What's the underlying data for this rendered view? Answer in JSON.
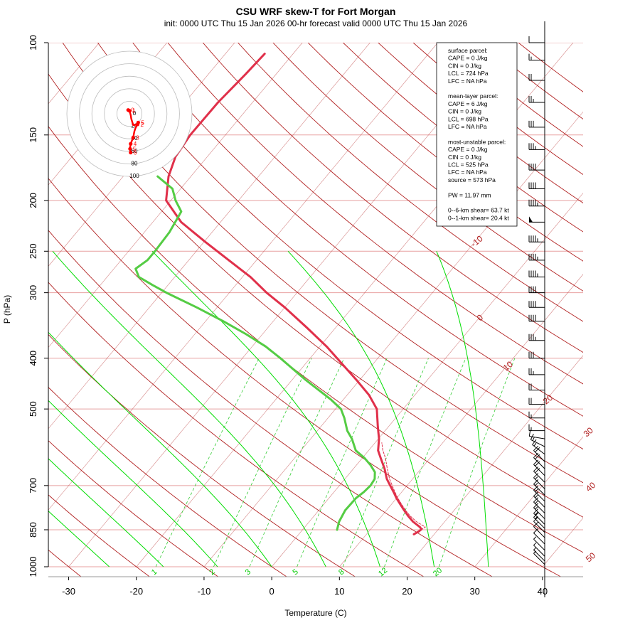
{
  "header": {
    "title": "CSU WRF skew-T for Fort Morgan",
    "subtitle": "init: 0000 UTC Thu 15 Jan 2026     00-hr forecast valid 0000 UTC Thu 15 Jan 2026"
  },
  "info_box": {
    "lines": [
      "surface parcel:",
      "CAPE = 0 J/kg",
      "CIN = 0 J/kg",
      "LCL = 724 hPa",
      "LFC = NA hPa",
      "",
      "mean-layer parcel:",
      "CAPE = 6 J/kg",
      "CIN = 0 J/kg",
      "LCL = 698 hPa",
      "LFC = NA hPa",
      "",
      "most-unstable parcel:",
      "CAPE = 0 J/kg",
      "CIN = 0 J/kg",
      "LCL = 525 hPa",
      "LFC = NA hPa",
      "source = 573 hPa",
      "",
      "PW =  11.97 mm",
      "",
      "0--6-km shear= 63.7 kt",
      "0--1-km shear= 20.4 kt"
    ]
  },
  "colors": {
    "isotherm": "#b22222",
    "isobar": "#e8a0a0",
    "dry_adiabat": "#b22222",
    "moist_adiabat": "#00dd00",
    "mixing_ratio": "#33cc33",
    "temperature": "#e0304a",
    "dewpoint": "#55cc44",
    "hodograph": "#ff0000"
  },
  "chart_data": {
    "type": "line",
    "chart_kind": "skew-T log-P",
    "xlabel": "Temperature (C)",
    "ylabel": "P (hPa)",
    "x_ticks": [
      -30,
      -20,
      -10,
      0,
      10,
      20,
      30,
      40
    ],
    "y_ticks": [
      100,
      150,
      200,
      250,
      300,
      400,
      500,
      700,
      850,
      1000
    ],
    "y_scale": "log",
    "ylim": [
      1000,
      100
    ],
    "xlim_at_1000hPa": [
      -33,
      46
    ],
    "isotherm_labels": [
      "-10",
      "0",
      "10",
      "20",
      "30",
      "40",
      "50"
    ],
    "mixing_ratio_labels": [
      "1",
      "2",
      "3",
      "5",
      "8",
      "12",
      "20"
    ],
    "series": [
      {
        "name": "temperature",
        "pressure": [
          867,
          855,
          848,
          840,
          820,
          800,
          780,
          760,
          740,
          720,
          700,
          680,
          650,
          620,
          600,
          570,
          540,
          500,
          470,
          440,
          410,
          380,
          350,
          320,
          300,
          280,
          260,
          240,
          220,
          200,
          180,
          165,
          150,
          130,
          115,
          105
        ],
        "values": [
          17.0,
          17.4,
          17.5,
          17.0,
          15.3,
          13.9,
          12.6,
          11.3,
          10.0,
          8.8,
          7.5,
          6.2,
          4.6,
          2.7,
          1.4,
          0.1,
          -1.6,
          -3.9,
          -6.8,
          -10.5,
          -14.6,
          -19.0,
          -24.2,
          -30.0,
          -34.5,
          -38.8,
          -44.1,
          -49.8,
          -55.8,
          -60.7,
          -63.3,
          -64.7,
          -65.2,
          -65.1,
          -64.5,
          -64.2
        ]
      },
      {
        "name": "dewpoint",
        "pressure": [
          850,
          820,
          780,
          740,
          720,
          700,
          680,
          660,
          640,
          620,
          600,
          570,
          550,
          520,
          500,
          480,
          440,
          400,
          380,
          360,
          340,
          320,
          300,
          290,
          280,
          270,
          260,
          250,
          230,
          210,
          200,
          190,
          180
        ],
        "values": [
          5.1,
          4.4,
          3.9,
          4.0,
          4.4,
          4.6,
          4.4,
          3.6,
          2.1,
          0.3,
          -1.9,
          -3.9,
          -5.6,
          -7.6,
          -9.2,
          -11.8,
          -18.0,
          -24.4,
          -28.0,
          -32.4,
          -37.4,
          -43.0,
          -49.3,
          -52.3,
          -55.3,
          -56.8,
          -56.1,
          -56.1,
          -56.3,
          -57.1,
          -59.3,
          -61.2,
          -64.9
        ]
      },
      {
        "name": "parcel",
        "pressure": [
          850,
          840,
          820,
          800,
          780,
          760,
          740,
          720,
          700,
          680,
          650,
          620,
          600,
          580
        ],
        "values": [
          17.5,
          17.8,
          15.8,
          14.2,
          12.8,
          11.5,
          10.2,
          9.0,
          7.8,
          6.6,
          5.0,
          3.4,
          2.1,
          1.0
        ]
      }
    ],
    "wind_barbs": {
      "pressure": [
        990,
        975,
        955,
        930,
        905,
        880,
        860,
        845,
        830,
        810,
        790,
        770,
        750,
        730,
        710,
        690,
        670,
        650,
        630,
        610,
        590,
        570,
        550,
        520,
        490,
        460,
        430,
        400,
        370,
        340,
        320,
        300,
        280,
        260,
        240,
        220,
        205,
        190,
        175,
        160,
        145,
        130,
        118,
        108,
        100
      ],
      "u": [
        2,
        3,
        4,
        5,
        6,
        8,
        8,
        9,
        10,
        10,
        10,
        11,
        12,
        12,
        12,
        13,
        13,
        14,
        14,
        13,
        12,
        12,
        14,
        16,
        18,
        22,
        26,
        30,
        34,
        38,
        40,
        42,
        43,
        44,
        46,
        48,
        46,
        42,
        38,
        34,
        28,
        24,
        18,
        14,
        10
      ],
      "v": [
        -2,
        -3,
        -4,
        -5,
        -6,
        -8,
        -8,
        -9,
        -10,
        -10,
        -10,
        -11,
        -12,
        -12,
        -12,
        -13,
        -13,
        -14,
        -14,
        -10,
        -6,
        -2,
        0,
        0,
        0,
        0,
        0,
        0,
        0,
        0,
        0,
        0,
        0,
        0,
        0,
        0,
        0,
        0,
        0,
        0,
        0,
        0,
        0,
        0,
        0
      ]
    },
    "hodograph": {
      "ring_labels": [
        "0",
        "20",
        "40",
        "60",
        "80",
        "100"
      ],
      "points": [
        {
          "label": "0",
          "u": -2,
          "v": 6
        },
        {
          "label": "1",
          "u": 0,
          "v": 5
        },
        {
          "label": "2",
          "u": 13,
          "v": -17
        },
        {
          "label": "5",
          "u": 14,
          "v": -14
        },
        {
          "label": "3",
          "u": 6,
          "v": -38
        },
        {
          "label": "4",
          "u": 2,
          "v": -48
        },
        {
          "label": "5",
          "u": 1,
          "v": -56
        },
        {
          "label": "6",
          "u": 2,
          "v": -62
        }
      ],
      "path": [
        [
          -2,
          6
        ],
        [
          0,
          5
        ],
        [
          2,
          -2
        ],
        [
          3,
          -8
        ],
        [
          6,
          -18
        ],
        [
          13,
          -17
        ],
        [
          14,
          -14
        ],
        [
          10,
          -22
        ],
        [
          8,
          -28
        ],
        [
          6,
          -38
        ],
        [
          4,
          -43
        ],
        [
          2,
          -48
        ],
        [
          1,
          -54
        ],
        [
          1,
          -56
        ],
        [
          2,
          -62
        ]
      ]
    }
  }
}
